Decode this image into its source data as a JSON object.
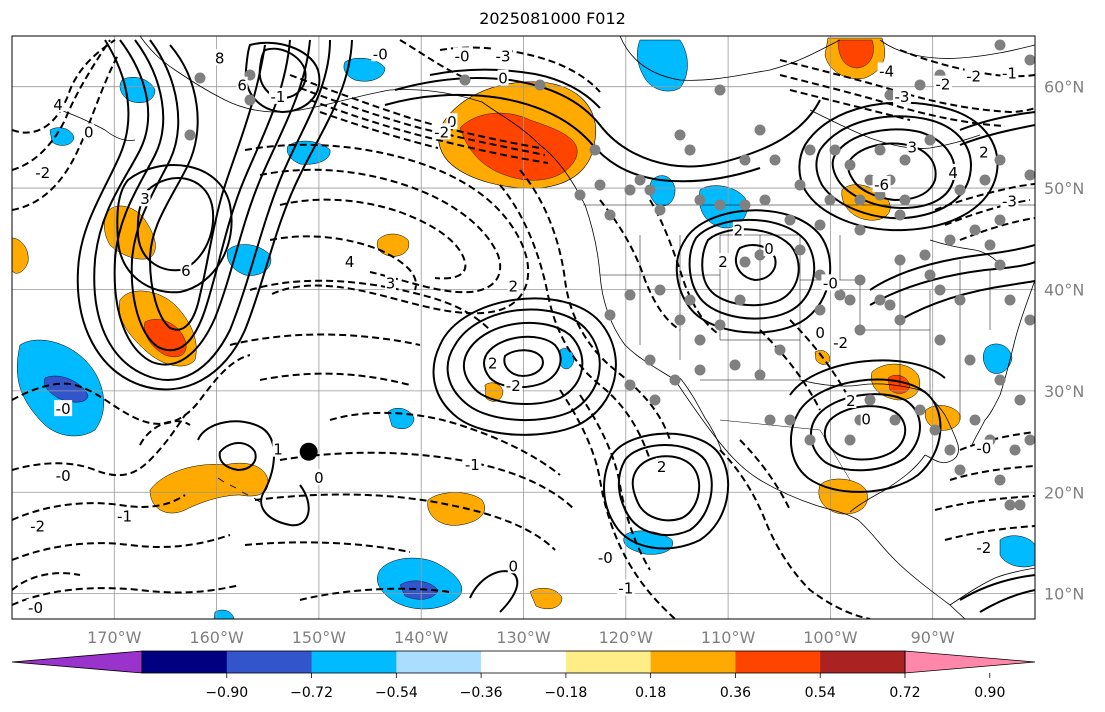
{
  "title": "2025081000 F012",
  "map": {
    "lon_range": [
      -180,
      -80
    ],
    "lat_range": [
      7.5,
      65
    ],
    "lon_ticks": [
      {
        "lon": -170,
        "label": "170°W"
      },
      {
        "lon": -160,
        "label": "160°W"
      },
      {
        "lon": -150,
        "label": "150°W"
      },
      {
        "lon": -140,
        "label": "140°W"
      },
      {
        "lon": -130,
        "label": "130°W"
      },
      {
        "lon": -120,
        "label": "120°W"
      },
      {
        "lon": -110,
        "label": "110°W"
      },
      {
        "lon": -100,
        "label": "100°W"
      },
      {
        "lon": -90,
        "label": "90°W"
      }
    ],
    "lat_ticks": [
      {
        "lat": 60,
        "label": "60°N"
      },
      {
        "lat": 50,
        "label": "50°N"
      },
      {
        "lat": 40,
        "label": "40°N"
      },
      {
        "lat": 30,
        "label": "30°N"
      },
      {
        "lat": 20,
        "label": "20°N"
      },
      {
        "lat": 10,
        "label": "10°N"
      }
    ],
    "gridlines": true,
    "marker": {
      "lon": -151,
      "lat": 24,
      "color": "#000000"
    }
  },
  "colorbar": {
    "colors": [
      "#9933cc",
      "#000080",
      "#3355cc",
      "#00bbff",
      "#aaddff",
      "#ffffff",
      "#ffee88",
      "#ffaa00",
      "#ff4400",
      "#aa2222",
      "#ff88aa"
    ],
    "tick_labels": [
      "−0.90",
      "−0.72",
      "−0.54",
      "−0.36",
      "−0.18",
      "0.18",
      "0.36",
      "0.54",
      "0.72",
      "0.90"
    ],
    "extend": "both"
  },
  "contours": {
    "labels": [
      {
        "text": "8",
        "lon": -159.7,
        "lat": 62.8
      },
      {
        "text": "6",
        "lon": -157.5,
        "lat": 60.1
      },
      {
        "text": "4",
        "lon": -175.5,
        "lat": 58.2
      },
      {
        "text": "-2",
        "lon": -177,
        "lat": 51.5
      },
      {
        "text": "0",
        "lon": -172.5,
        "lat": 55.5
      },
      {
        "text": "3",
        "lon": -167,
        "lat": 48.9
      },
      {
        "text": "6",
        "lon": -163,
        "lat": 41.8
      },
      {
        "text": "4",
        "lon": -147,
        "lat": 42.7
      },
      {
        "text": "3",
        "lon": -143,
        "lat": 40.6
      },
      {
        "text": "2",
        "lon": -131,
        "lat": 40.3
      },
      {
        "text": "2",
        "lon": -133,
        "lat": 32.7
      },
      {
        "text": "-2",
        "lon": -131,
        "lat": 30.5
      },
      {
        "text": "-0",
        "lon": -175,
        "lat": 28.2
      },
      {
        "text": "1",
        "lon": -154,
        "lat": 24.2
      },
      {
        "text": "0",
        "lon": -150,
        "lat": 21.4
      },
      {
        "text": "-0",
        "lon": -175,
        "lat": 21.6
      },
      {
        "text": "-1",
        "lon": -169,
        "lat": 17.6
      },
      {
        "text": "-2",
        "lon": -177.5,
        "lat": 16.6
      },
      {
        "text": "-0",
        "lon": -177.7,
        "lat": 8.6
      },
      {
        "text": "-1",
        "lon": -135,
        "lat": 22.7
      },
      {
        "text": "0",
        "lon": -131,
        "lat": 12.7
      },
      {
        "text": "-0",
        "lon": -122,
        "lat": 13.5
      },
      {
        "text": "-1",
        "lon": -120,
        "lat": 10.5
      },
      {
        "text": "2",
        "lon": -116.5,
        "lat": 22.5
      },
      {
        "text": "2",
        "lon": -110.5,
        "lat": 42.7
      },
      {
        "text": "2",
        "lon": -109,
        "lat": 45.8
      },
      {
        "text": "0",
        "lon": -106,
        "lat": 44
      },
      {
        "text": "0",
        "lon": -101,
        "lat": 35.7
      },
      {
        "text": "-0",
        "lon": -100,
        "lat": 40.6
      },
      {
        "text": "-2",
        "lon": -99,
        "lat": 34.7
      },
      {
        "text": "2",
        "lon": -98,
        "lat": 29
      },
      {
        "text": "0",
        "lon": -96.5,
        "lat": 27.2
      },
      {
        "text": "-0",
        "lon": -85,
        "lat": 24.3
      },
      {
        "text": "-2",
        "lon": -85,
        "lat": 14.5
      },
      {
        "text": "-3",
        "lon": -93,
        "lat": 59
      },
      {
        "text": "-2",
        "lon": -89,
        "lat": 60.2
      },
      {
        "text": "-1",
        "lon": -82.5,
        "lat": 61.3
      },
      {
        "text": "-2",
        "lon": -86,
        "lat": 61
      },
      {
        "text": "-4",
        "lon": -94.5,
        "lat": 61.5
      },
      {
        "text": "3",
        "lon": -92,
        "lat": 54
      },
      {
        "text": "-6",
        "lon": -95,
        "lat": 50.3
      },
      {
        "text": "4",
        "lon": -88,
        "lat": 51.5
      },
      {
        "text": "2",
        "lon": -85,
        "lat": 53.5
      },
      {
        "text": "-3",
        "lon": -82.5,
        "lat": 48.7
      },
      {
        "text": "0",
        "lon": -137,
        "lat": 56.5
      },
      {
        "text": "0",
        "lon": -132,
        "lat": 60.8
      },
      {
        "text": "-3",
        "lon": -132,
        "lat": 63
      },
      {
        "text": "-0",
        "lon": -144,
        "lat": 63.2
      },
      {
        "text": "-0",
        "lon": -136,
        "lat": 63
      },
      {
        "text": "-1",
        "lon": -154,
        "lat": 59
      },
      {
        "text": "-2",
        "lon": -138,
        "lat": 55.5
      }
    ]
  }
}
